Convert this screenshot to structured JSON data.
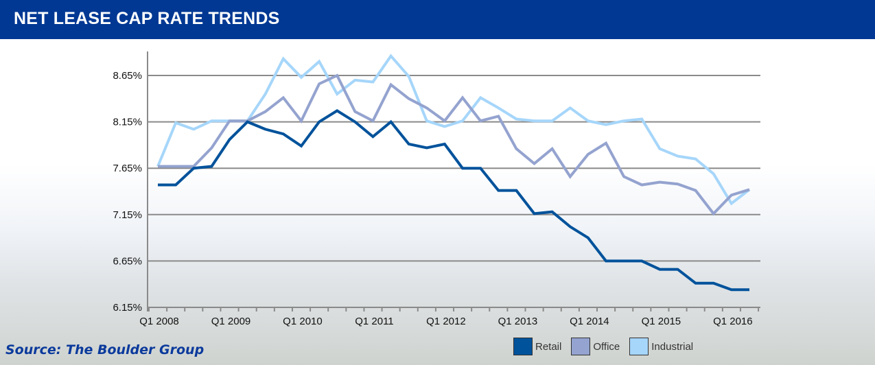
{
  "header": {
    "title": "NET LEASE CAP RATE TRENDS"
  },
  "source": "Source: The Boulder Group",
  "chart_data": {
    "type": "line",
    "title": "",
    "xlabel": "",
    "ylabel": "",
    "x": [
      "Q1 2008",
      "Q2 2008",
      "Q3 2008",
      "Q4 2008",
      "Q1 2009",
      "Q2 2009",
      "Q3 2009",
      "Q4 2009",
      "Q1 2010",
      "Q2 2010",
      "Q3 2010",
      "Q4 2010",
      "Q1 2011",
      "Q2 2011",
      "Q3 2011",
      "Q4 2011",
      "Q1 2012",
      "Q2 2012",
      "Q3 2012",
      "Q4 2012",
      "Q1 2013",
      "Q2 2013",
      "Q3 2013",
      "Q4 2013",
      "Q1 2014",
      "Q2 2014",
      "Q3 2014",
      "Q4 2014",
      "Q1 2015",
      "Q2 2015",
      "Q3 2015",
      "Q4 2015",
      "Q1 2016",
      "Q2 2016"
    ],
    "xtick_labels": [
      "Q1 2008",
      "Q1 2009",
      "Q1 2010",
      "Q1 2011",
      "Q1 2012",
      "Q1 2013",
      "Q1 2014",
      "Q1 2015",
      "Q1 2016"
    ],
    "ytick_labels": [
      "8.65%",
      "8.15%",
      "7.65%",
      "7.15%",
      "6.65%",
      "6.15%"
    ],
    "yticks": [
      8.65,
      8.15,
      7.65,
      7.15,
      6.65,
      6.15
    ],
    "ylim": [
      6.15,
      8.9
    ],
    "grid": true,
    "legend_position": "bottom-right",
    "series": [
      {
        "name": "Retail",
        "color": "#00529b",
        "values": [
          7.47,
          7.47,
          7.65,
          7.67,
          7.96,
          8.15,
          8.07,
          8.02,
          7.89,
          8.15,
          8.27,
          8.15,
          7.99,
          8.15,
          7.91,
          7.87,
          7.91,
          7.65,
          7.65,
          7.41,
          7.41,
          7.16,
          7.18,
          7.02,
          6.9,
          6.65,
          6.65,
          6.65,
          6.56,
          6.56,
          6.41,
          6.41,
          6.34,
          6.34
        ]
      },
      {
        "name": "Office",
        "color": "#94a3cf",
        "values": [
          7.67,
          7.67,
          7.67,
          7.87,
          8.16,
          8.16,
          8.26,
          8.41,
          8.16,
          8.56,
          8.65,
          8.26,
          8.16,
          8.55,
          8.4,
          8.3,
          8.16,
          8.41,
          8.16,
          8.21,
          7.86,
          7.7,
          7.86,
          7.56,
          7.8,
          7.92,
          7.56,
          7.47,
          7.5,
          7.48,
          7.41,
          7.16,
          7.36,
          7.42
        ]
      },
      {
        "name": "Industrial",
        "color": "#a6d6fa",
        "values": [
          7.67,
          8.14,
          8.07,
          8.16,
          8.16,
          8.16,
          8.45,
          8.83,
          8.63,
          8.8,
          8.45,
          8.6,
          8.58,
          8.86,
          8.64,
          8.16,
          8.1,
          8.16,
          8.41,
          8.3,
          8.18,
          8.16,
          8.16,
          8.3,
          8.16,
          8.12,
          8.16,
          8.18,
          7.86,
          7.78,
          7.75,
          7.59,
          7.27,
          7.42
        ]
      }
    ]
  }
}
